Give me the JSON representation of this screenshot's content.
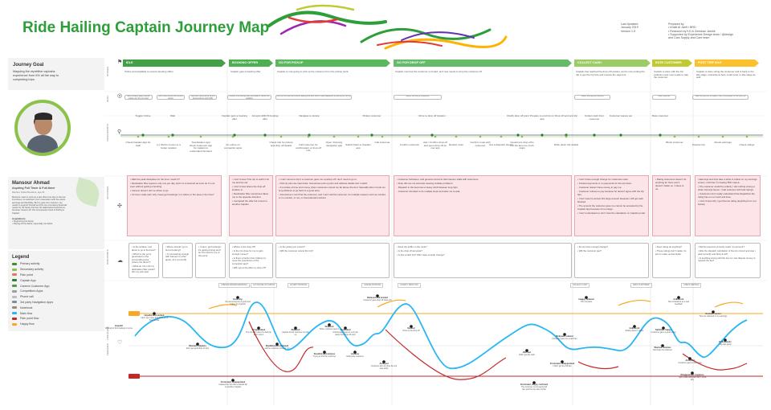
{
  "title": "Ride Hailing Captain Journey Map",
  "meta": {
    "updated_label": "Last Updated",
    "updated": "January 2019",
    "version": "Version 1.5",
    "prepared_label": "Prepared by",
    "prepared_lines": [
      "• Khalil Al Jarrif / BRD",
      "• Research by KG & Zeeshan Jamidi",
      "• Supported by Experience Design team / @design",
      "and Cars Supply and Care team"
    ]
  },
  "goal": {
    "heading": "Journey Goal",
    "text": "Mapping the repetitive captains experience from 6% all the way to completing trips."
  },
  "persona": {
    "name": "Mansour Ahmad",
    "role": "Aspiring Full Timer & Full-timer",
    "meta": "Married, Dubai Resident, age 34",
    "motto": "Mansour used to work as a taxi driver but due to the low incentives, he switched. From interaction with the wants earnings and flexibility, But he gets from Careem. He needs to support himself and his own increasing financial needs for his family that live his elaborated dreamhome. He keep Careem for this and speedy result of finding a Captain.",
    "aspirations_label": "Aspirations",
    "aspirations": [
      "• Supporting his family",
      "• Paying off his debts, especially car debts"
    ]
  },
  "legend": {
    "heading": "Legend",
    "items": [
      {
        "label": "Primary activity",
        "color": "#3a8f3a"
      },
      {
        "label": "Secondary activity",
        "color": "#8bc34a"
      },
      {
        "label": "Pain point",
        "color": "#e57373"
      },
      {
        "label": "Captain App",
        "color": "#2e7d32"
      },
      {
        "label": "Careem Customer App",
        "color": "#43a047"
      },
      {
        "label": "Competitors Apps",
        "color": "#9e9e9e"
      },
      {
        "label": "Phone call",
        "color": "#bdbdbd"
      },
      {
        "label": "3rd party Navigation Apps",
        "color": "#78909c"
      },
      {
        "label": "Notebook",
        "color": "#a1887f"
      },
      {
        "label": "Main flow",
        "color": "#29b6f6"
      },
      {
        "label": "Pain point flow",
        "color": "#c62828"
      },
      {
        "label": "Happy flow",
        "color": "#f9a825"
      }
    ]
  },
  "lanes": [
    "STAGES",
    "GOAL",
    "TOUCHPOINTS",
    "ACTIVITIES",
    "PAIN POINTS",
    "THOUGHTS",
    "FEELINGS"
  ],
  "phases": [
    {
      "name": "IDLE",
      "color": "#43a047",
      "desc": "Online and available to receive booking offers."
    },
    {
      "name": "BOOKING OFFER",
      "color": "#4caf50",
      "desc": "Captain gets a booking offer."
    },
    {
      "name": "GO FOR PICKUP",
      "color": "#5cb85c",
      "desc": "Captain is now going to pick up the customer from the pickup point."
    },
    {
      "name": "GO FOR DROP OFF",
      "color": "#66bb6a",
      "desc": "Captain now has the customer on board, and now needs to drop the customer off."
    },
    {
      "name": "COLLECT CASH",
      "color": "#9ccc65",
      "desc": "Captain has reached the drop off location, and is now ending the trip to get the trip fare and receive the payment."
    },
    {
      "name": "RATE CUSTOMER",
      "color": "#c0ca33",
      "desc": "Captain is done with the trip collection and now needs to rate the customer."
    },
    {
      "name": "POST TRIP IDLE",
      "color": "#fbc02d",
      "desc": "Captain is done rating the customer and is back to the idle stage. Interactions here could enter to idle stage as well."
    }
  ],
  "goals": [
    "Get a booking (daily volume; maybe one trip at a time)",
    "Get online before the trip plus setting",
    "Say both trips & as far as the inconvenience and traffic",
    "Realize the booking offer terminated 1 before the deadline",
    "Pick up the customer without waiting time and time of road availability by arriving to the trip",
    "Reach the drop off efficiently",
    "Collect the payment amount",
    "Rate customer",
    "Rate the post trip to make it more comfortable for the post trip"
  ],
  "activities_top": [
    "Toggle Online",
    "Wait",
    "Captain gets a booking offer",
    "Accepts ADD B booking offer",
    "Navigate to pickup",
    "Pickup customer",
    "Drive to drop off location",
    "Clarify drop off point",
    "Prepare to end trip on app",
    "Drop off and end trip",
    "Collect cash from customer",
    "Customer leaves car",
    "Rate customer"
  ],
  "activities_bottom": [
    "Check Captain App for cash",
    "(+) Shorts moves to a better location",
    "Touchstation app check Customer app for captain to understand demand",
    "Go online on competitor apps",
    "Check info for pickup and drop off details",
    "Call customer for confirmation or drop off info",
    "Open 3rd party navigation app",
    "Switch back to Captain app",
    "Call customer",
    "Confirm customer",
    "Ask / Confirm drop off and open drop off on nav app",
    "Restart route",
    "Confirm route with customer",
    "Get a dispatch sheets",
    "Customers drop off is not the last one; both stops",
    "Write down trip details",
    "Block customer",
    "Dispute trip",
    "Check earnings",
    "Check ratings"
  ],
  "pain_points": [
    {
      "items": [
        "• Wait the peak dissipates for the time I reach it?",
        "• Destination filter quota is only one per day, and it is consumed as soon as I'm not even without getting a booking.",
        "• Careem doesn't tell me where to go.",
        "• I'd never really earn why I keep get bookings. Is it where or the area or the time?"
      ]
    },
    {
      "items": [
        "• I don't know if the trip is worth it for me and the car.",
        "• I don't know where the drop off location is.",
        "• Destination filter sometimes takes me to the opposite direction.",
        "• I accepted the offer but it went to another Captain."
      ]
    },
    {
      "items": [
        "• I can't cancel a trip if a customer gave me a pickup off I don't need to go to.",
        "• Pick up pins are inaccurate. Sometimes pick up pins and address details don't match.",
        "• If a stroke of time and money when customers cancel me far above the limit. Specially when it took me long distance to go back to a good area.",
        "• Sometimes I can't find the customer, and I can't call the customer, for multiple reasons such as number, or no number, or not, or international numbers."
      ]
    },
    {
      "items": [
        "• Customer behaviour, and general concerns that Careem stalls with customers.",
        "• Drop offs are not accurate causing multiple problems:",
        "  ◦ Dispatch in the becomes a heavy stroll between long trips.",
        "  ◦ Customer intended to do multiple stops and asks me to wait."
      ]
    },
    {
      "items": [
        "• I don't have enough change for customers cash.",
        "• Unclear payments or no payments for the trip fares.",
        "  ◦ Customer doesn't have money to pay me.",
        "  ◦ Customer refuses to pay because he doesn't agree with the trip fare.",
        "• I don't want to accept this large amount because I will get cash blocked.",
        "• The amount the customer gave me cannot be accepted by the Captain App because it's too large.",
        "• I don't understand or don't trust the calculation on Captain portal."
      ]
    },
    {
      "items": [
        "• Rating customers doesn't do anything for them and it doesn't matter so, it does to us."
      ]
    },
    {
      "items": [
        "• Earnings and trips take a while to reflect on my earnings screen, until then I'm feeling 55% nauea.",
        "• The customer would be unfairly, I did nothing wrong or what I did was favour. I had customer with bad ratings.",
        "• Customers don't really understand that dispatches the rating has on our work and lives.",
        "• I don't know why I get this low rating (anything from 4 or below)."
      ]
    }
  ],
  "thoughts": [
    {
      "items": [
        "• Is the location I am about to go to the best?",
        "• Which is the yet is generated on the surrounding area (where the driver?)",
        "• What do I do until my destination filter quota? (Do my pick-ups)"
      ]
    },
    {
      "items": [
        "• Where should I go to find a booking?",
        "• I'm wondering enough with Careem to other apps), (It's not worth)"
      ]
    },
    {
      "items": [
        "• I hope I get bookings; it's getting boring and I am the best for me of this point."
      ]
    },
    {
      "items": [
        "• Where is the drop off?",
        "• Is the trip close for me to gain enough money?",
        "• Is there a friction from linking my route the experience of the competitor app?",
        "• Will I get a trip after my drop off?"
      ]
    },
    {
      "items": [
        "• Is the pickup pin correct?",
        "• Will the customer cancel the trip?"
      ]
    },
    {
      "items": [
        "• Does the traffic on the route?",
        "• Is the drop off accurate?",
        "• Is this a cash trip? Will I have enough change?"
      ]
    },
    {
      "items": [
        "• Do we have enough change?",
        "• Will the customer pay?"
      ]
    },
    {
      "items": [
        "• Does rating do anything?",
        "• These ratings don't matter, its just to make us feel better."
      ]
    },
    {
      "items": [
        "• Did the payment correctly reach my account?",
        "• Was the dispatch calculation of the trip correct and was I paid correctly and fairly at all?",
        "• Is anything wrong with the trip so I can dispute money to request the fee?"
      ]
    }
  ],
  "feeling_tags": [
    "CHECKS DRIVER EARNINGS",
    "GO ONLINE ON SUPPLY",
    "ACCEPT BOOKING",
    "CANCEL BOOKING",
    "CLARIFY DROP OFF",
    "COLLECT CASH",
    "RATE CUSTOMER",
    "CHECK RATINGS"
  ],
  "feeling_notes": [
    {
      "title": "Hopeful",
      "text": "Waiting for first booking to come"
    },
    {
      "title": "Hopeful and excited",
      "text": "I don't see many trips but a lot of hope at idle"
    },
    {
      "title": "Worried, helpless",
      "text": "Don't get good flow of trips"
    },
    {
      "title": "Good trip",
      "text": "the upcoming trip is good and makes me hopeful"
    },
    {
      "title": "Disappointed",
      "text": "The trip offer was of a bad trip and I took it"
    },
    {
      "title": "Frustrated, disappointed",
      "text": "I wasted the trip with a wasted trip on another Captain"
    },
    {
      "title": "Doubtful and confused",
      "text": "will the customer show or not"
    },
    {
      "title": "Relieved",
      "text": "Captain found customer on pick up"
    },
    {
      "title": "Relieved",
      "text": "When customer gets in"
    },
    {
      "title": "Doubtful and anxious",
      "text": "Trying to find the customer"
    },
    {
      "title": "Anxious",
      "text": "finding the customer"
    },
    {
      "title": "Frustrated",
      "text": "Unfortunate route for a trip far away from drop off point"
    },
    {
      "title": "Relieved and excited",
      "text": "Customer gave drop off clear info"
    },
    {
      "title": "Neutral",
      "text": "Drive to the drop off"
    },
    {
      "title": "Annoyed",
      "text": "Customer did not show the trip was awful"
    },
    {
      "title": "Frustrated, angry, confused",
      "text": "The customer is not paying full fare and the trip was not fair"
    },
    {
      "title": "Worried",
      "text": "Didn't get the cash"
    },
    {
      "title": "Relieved, relaxed",
      "text": "Customer gave me exact fare"
    },
    {
      "title": "Frustrated, disappointed",
      "text": "I didn't get the full fare"
    },
    {
      "title": "Indifferent",
      "text": "Rating doesn't matter"
    },
    {
      "title": "Happy, relieved",
      "text": "Trip complete"
    },
    {
      "title": "Satisfied, happy",
      "text": "Customer gave a good rating"
    },
    {
      "title": "Worried, anxious",
      "text": "Earnings not reflected"
    },
    {
      "title": "Annoyed",
      "text": "Customer gave a low rating"
    },
    {
      "title": "Disappointed, hopeless",
      "text": "I got a bad rating and don't know why"
    },
    {
      "title": "Content, secure",
      "text": "Tips are reflected in my earnings"
    },
    {
      "title": "Indifferent",
      "text": "Not considered as a real feedback"
    },
    {
      "title": "Enthusiastic",
      "text": "Trip was great"
    }
  ],
  "colors": {
    "brand": "#2e9e3a",
    "main_flow": "#29b6f6",
    "pain_flow": "#c62828",
    "happy_flow": "#f9a825"
  }
}
